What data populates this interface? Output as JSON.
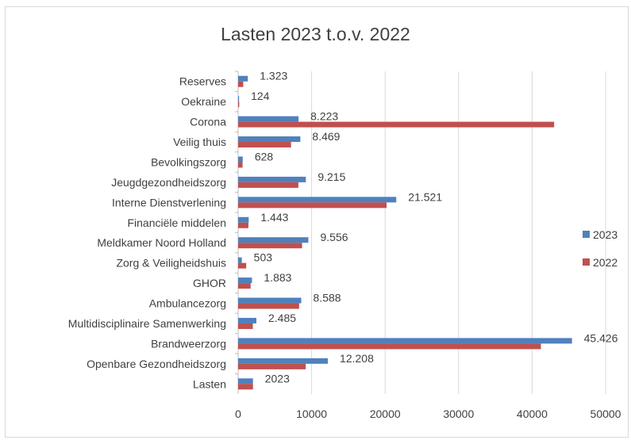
{
  "chart_data": {
    "type": "bar",
    "orientation": "horizontal",
    "title": "Lasten 2023 t.o.v. 2022",
    "xlabel": "",
    "ylabel": "",
    "xlim": [
      0,
      50000
    ],
    "x_ticks": [
      "0",
      "10000",
      "20000",
      "30000",
      "40000",
      "50000"
    ],
    "grid": true,
    "legend_position": "right",
    "categories": [
      "Lasten",
      "Openbare Gezondheidszorg",
      "Brandweerzorg",
      "Multidisciplinaire Samenwerking",
      "Ambulancezorg",
      "GHOR",
      "Zorg & Veiligheidshuis",
      "Meldkamer Noord Holland",
      "Financiële middelen",
      "Interne Dienstverlening",
      "Jeugdgezondheidszorg",
      "Bevolkingszorg",
      "Veilig thuis",
      "Corona",
      "Oekraine",
      "Reserves"
    ],
    "series": [
      {
        "name": "2023",
        "color": "#4f81bd",
        "values": [
          2023,
          12208,
          45426,
          2485,
          8588,
          1883,
          503,
          9556,
          1443,
          21521,
          9215,
          628,
          8469,
          8223,
          124,
          1323
        ],
        "data_labels": [
          "2023",
          "12.208",
          "45.426",
          "2.485",
          "8.588",
          "1.883",
          "503",
          "9.556",
          "1.443",
          "21.521",
          "9.215",
          "628",
          "8.469",
          "8.223",
          "124",
          "1.323"
        ]
      },
      {
        "name": "2022",
        "color": "#c0504d",
        "values": [
          2022,
          9200,
          41200,
          2000,
          8300,
          1700,
          1100,
          8700,
          1400,
          20200,
          8200,
          600,
          7200,
          43000,
          150,
          700
        ]
      }
    ]
  }
}
